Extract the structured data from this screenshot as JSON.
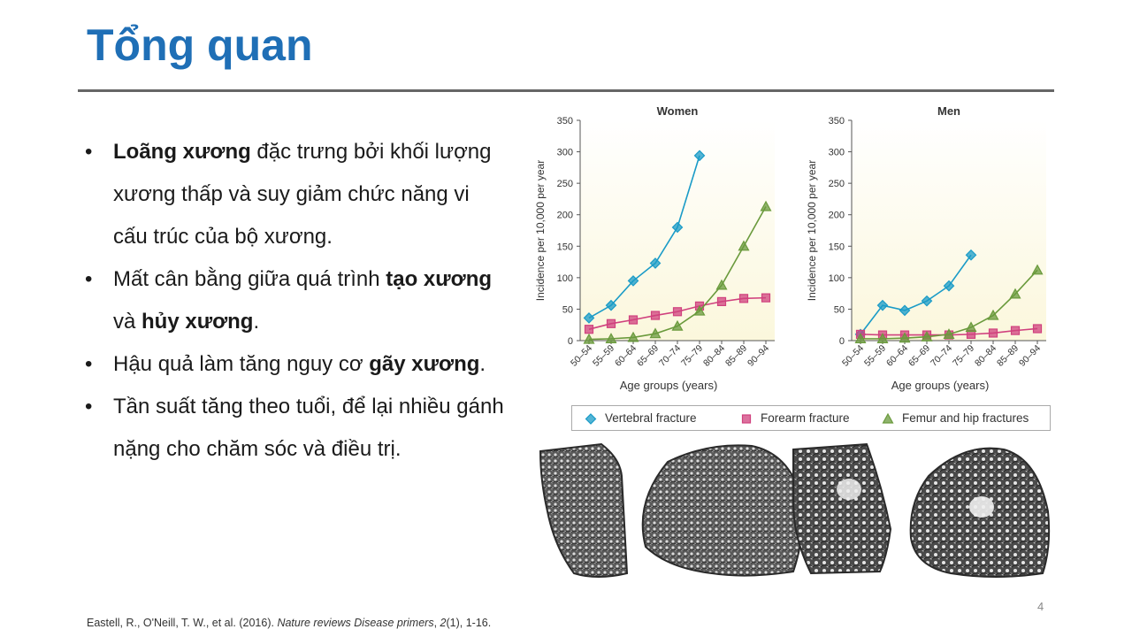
{
  "title": "Tổng quan",
  "bullets": [
    {
      "parts": [
        {
          "text": "Loãng xương",
          "bold": true
        },
        {
          "text": " đặc trưng bởi khối lượng xương thấp và suy giảm chức năng vi cấu trúc của bộ xương.",
          "bold": false
        }
      ]
    },
    {
      "parts": [
        {
          "text": "Mất cân bằng giữa quá trình ",
          "bold": false
        },
        {
          "text": "tạo xương",
          "bold": true
        },
        {
          "text": " và ",
          "bold": false
        },
        {
          "text": "hủy xương",
          "bold": true
        },
        {
          "text": ".",
          "bold": false
        }
      ]
    },
    {
      "parts": [
        {
          "text": "Hậu quả làm tăng nguy cơ ",
          "bold": false
        },
        {
          "text": "gãy xương",
          "bold": true
        },
        {
          "text": ".",
          "bold": false
        }
      ]
    },
    {
      "parts": [
        {
          "text": "Tần suất tăng theo tuổi, để lại nhiều gánh nặng cho chăm sóc và điều trị.",
          "bold": false
        }
      ]
    }
  ],
  "chart_data": [
    {
      "type": "line",
      "title": "Women",
      "xlabel": "Age groups (years)",
      "ylabel": "Incidence per 10,000 per year",
      "categories": [
        "50–54",
        "55–59",
        "60–64",
        "65–69",
        "70–74",
        "75–79",
        "80–84",
        "85–89",
        "90–94"
      ],
      "ylim": [
        0,
        350
      ],
      "yticks": [
        0,
        50,
        100,
        150,
        200,
        250,
        300,
        350
      ],
      "series": [
        {
          "name": "Vertebral fracture",
          "marker": "diamond",
          "color": "#1a9bc7",
          "values": [
            36,
            56,
            95,
            123,
            180,
            294,
            null,
            null,
            null
          ]
        },
        {
          "name": "Forearm fracture",
          "marker": "square",
          "color": "#d0417e",
          "values": [
            18,
            27,
            33,
            40,
            46,
            55,
            62,
            67,
            68
          ]
        },
        {
          "name": "Femur and hip fractures",
          "marker": "triangle",
          "color": "#6a9a3c",
          "values": [
            2,
            3,
            5,
            11,
            23,
            47,
            88,
            150,
            213
          ]
        }
      ]
    },
    {
      "type": "line",
      "title": "Men",
      "xlabel": "Age groups (years)",
      "ylabel": "Incidence per 10,000 per year",
      "categories": [
        "50–54",
        "55–59",
        "60–64",
        "65–69",
        "70–74",
        "75–79",
        "80–84",
        "85–89",
        "90–94"
      ],
      "ylim": [
        0,
        350
      ],
      "yticks": [
        0,
        50,
        100,
        150,
        200,
        250,
        300,
        350
      ],
      "series": [
        {
          "name": "Vertebral fracture",
          "marker": "diamond",
          "color": "#1a9bc7",
          "values": [
            10,
            56,
            48,
            63,
            87,
            136,
            null,
            null,
            null
          ]
        },
        {
          "name": "Forearm fracture",
          "marker": "square",
          "color": "#d0417e",
          "values": [
            10,
            9,
            9,
            9,
            9,
            10,
            12,
            16,
            19
          ]
        },
        {
          "name": "Femur and hip fractures",
          "marker": "triangle",
          "color": "#6a9a3c",
          "values": [
            3,
            3,
            4,
            6,
            10,
            21,
            40,
            74,
            112
          ]
        }
      ]
    }
  ],
  "legend": [
    {
      "label": "Vertebral fracture",
      "marker": "diamond",
      "color": "#1a9bc7"
    },
    {
      "label": "Forearm fracture",
      "marker": "square",
      "color": "#d0417e"
    },
    {
      "label": "Femur and hip fractures",
      "marker": "triangle",
      "color": "#6a9a3c"
    }
  ],
  "page_number": "4",
  "citation": {
    "authors": "Eastell, R., O'Neill, T. W., et al. (2016). ",
    "journal": "Nature reviews Disease primers",
    "volume_sep": ", ",
    "volume": "2",
    "issue_pages": "(1), 1-16."
  }
}
